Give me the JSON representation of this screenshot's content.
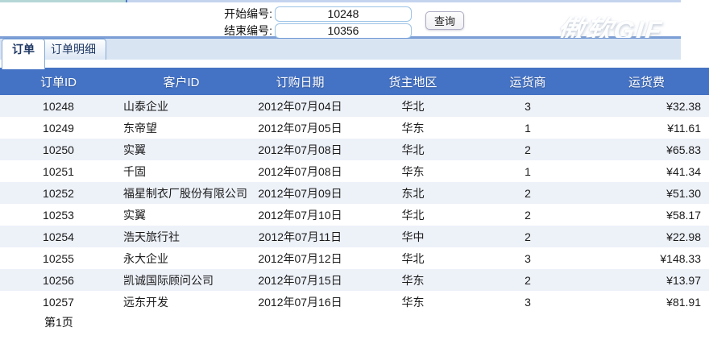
{
  "watermark": "傲软GIF",
  "query_form": {
    "start_label": "开始编号:",
    "start_value": "10248",
    "end_label": "结束编号:",
    "end_value": "10356",
    "query_button": "查询"
  },
  "tabs": [
    {
      "label": "订单",
      "active": true
    },
    {
      "label": "订单明细",
      "active": false
    }
  ],
  "table": {
    "columns": [
      "订单ID",
      "客户ID",
      "订购日期",
      "货主地区",
      "运货商",
      "运货费"
    ],
    "rows": [
      [
        "10248",
        "山泰企业",
        "2012年07月04日",
        "华北",
        "3",
        "¥32.38"
      ],
      [
        "10249",
        "东帝望",
        "2012年07月05日",
        "华东",
        "1",
        "¥11.61"
      ],
      [
        "10250",
        "实翼",
        "2012年07月08日",
        "华北",
        "2",
        "¥65.83"
      ],
      [
        "10251",
        "千固",
        "2012年07月08日",
        "华东",
        "1",
        "¥41.34"
      ],
      [
        "10252",
        "福星制衣厂股份有限公司",
        "2012年07月09日",
        "东北",
        "2",
        "¥51.30"
      ],
      [
        "10253",
        "实翼",
        "2012年07月10日",
        "华北",
        "2",
        "¥58.17"
      ],
      [
        "10254",
        "浩天旅行社",
        "2012年07月11日",
        "华中",
        "2",
        "¥22.98"
      ],
      [
        "10255",
        "永大企业",
        "2012年07月12日",
        "华北",
        "3",
        "¥148.33"
      ],
      [
        "10256",
        "凯诚国际顾问公司",
        "2012年07月15日",
        "华东",
        "2",
        "¥13.97"
      ],
      [
        "10257",
        "远东开发",
        "2012年07月16日",
        "华东",
        "3",
        "¥81.91"
      ]
    ]
  },
  "pager": {
    "page_label": "第1页"
  },
  "colors": {
    "header_bg": "#4472c4",
    "row_stripe": "#edf1f8",
    "tab_border": "#86a9d7",
    "tab_strip_bg": "#d9e4f3",
    "form_divider": "#7d9fd5",
    "input_border": "#9cc3e6",
    "strip_left": "#b5d8d7",
    "strip_right": "#c4d3ee"
  }
}
